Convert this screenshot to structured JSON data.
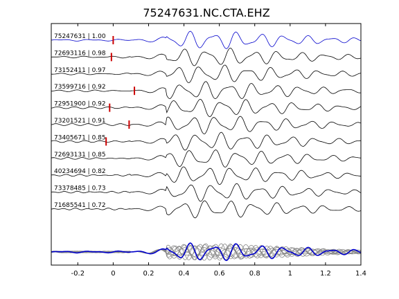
{
  "chart_data": {
    "type": "line",
    "title": "75247631.NC.CTA.EHZ",
    "xlabel": "",
    "ylabel": "",
    "xlim": [
      -0.35,
      1.4
    ],
    "xticks": [
      -0.2,
      0,
      0.2,
      0.4,
      0.6,
      0.8,
      1,
      1.2,
      1.4
    ],
    "xtick_labels": [
      "-0.2",
      "0",
      "0.2",
      "0.4",
      "0.6",
      "0.8",
      "1",
      "1.2",
      "1.4"
    ],
    "grid": false,
    "colors": {
      "reference": "#0000cc",
      "trace": "#000000",
      "pick": "#cc0000",
      "stack": "#888888"
    },
    "traces": [
      {
        "label": "75247631 | 1.00",
        "event_id": "75247631",
        "cc": 1.0,
        "pick": 0.0,
        "color": "#0000cc"
      },
      {
        "label": "72693116 | 0.98",
        "event_id": "72693116",
        "cc": 0.98,
        "pick": -0.01,
        "color": "#000000"
      },
      {
        "label": "73152411 | 0.97",
        "event_id": "73152411",
        "cc": 0.97,
        "pick": null,
        "color": "#000000"
      },
      {
        "label": "73599716 | 0.92",
        "event_id": "73599716",
        "cc": 0.92,
        "pick": 0.12,
        "color": "#000000"
      },
      {
        "label": "72951900 | 0.92",
        "event_id": "72951900",
        "cc": 0.92,
        "pick": -0.02,
        "color": "#000000"
      },
      {
        "label": "73201521 | 0.91",
        "event_id": "73201521",
        "cc": 0.91,
        "pick": 0.09,
        "color": "#000000"
      },
      {
        "label": "73405671 | 0.85",
        "event_id": "73405671",
        "cc": 0.85,
        "pick": -0.04,
        "color": "#000000"
      },
      {
        "label": "72693131 | 0.85",
        "event_id": "72693131",
        "cc": 0.85,
        "pick": null,
        "color": "#000000"
      },
      {
        "label": "40234694 | 0.82",
        "event_id": "40234694",
        "cc": 0.82,
        "pick": null,
        "color": "#000000"
      },
      {
        "label": "73378485 | 0.73",
        "event_id": "73378485",
        "cc": 0.73,
        "pick": null,
        "color": "#000000"
      },
      {
        "label": "71685541 | 0.72",
        "event_id": "71685541",
        "cc": 0.72,
        "pick": null,
        "color": "#000000"
      }
    ]
  }
}
